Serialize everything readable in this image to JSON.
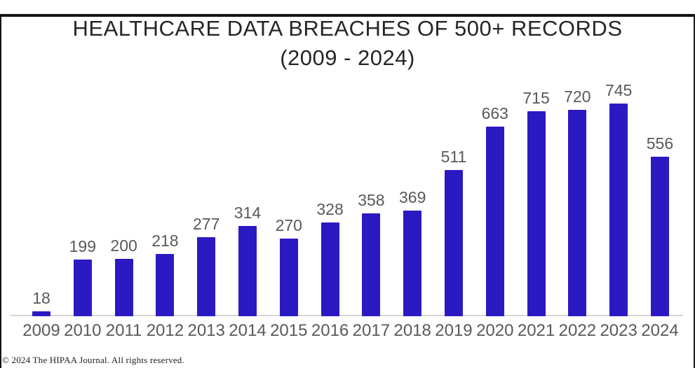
{
  "window": {
    "copyright": "© 2024 The HIPAA Journal. All rights reserved."
  },
  "chart_data": {
    "type": "bar",
    "title": "HEALTHCARE DATA BREACHES OF 500+ RECORDS (2009 - 2024)",
    "title_line1": "HEALTHCARE DATA BREACHES OF 500+ RECORDS",
    "title_line2": "(2009 - 2024)",
    "categories": [
      "2009",
      "2010",
      "2011",
      "2012",
      "2013",
      "2014",
      "2015",
      "2016",
      "2017",
      "2018",
      "2019",
      "2020",
      "2021",
      "2022",
      "2023",
      "2024"
    ],
    "values": [
      18,
      199,
      200,
      218,
      277,
      314,
      270,
      328,
      358,
      369,
      511,
      663,
      715,
      720,
      745,
      556
    ],
    "xlabel": "",
    "ylabel": "",
    "ylim": [
      0,
      760
    ],
    "grid": false,
    "legend_position": "none",
    "data_labels": true,
    "colors": {
      "bar": "#2b1ac2",
      "value_label": "#595959",
      "axis_label": "#595959",
      "title": "#262626",
      "axis_line": "#d6d6d6"
    }
  }
}
